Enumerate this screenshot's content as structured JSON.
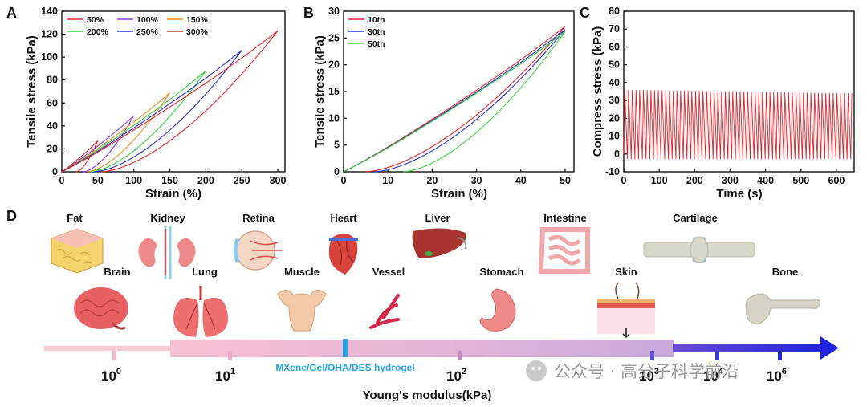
{
  "colors": {
    "red": "#e8242b",
    "purple": "#8a3ad6",
    "orange": "#f08c1e",
    "green": "#37d23c",
    "blue": "#2732c8",
    "hydrogel": "#1ea7e6"
  },
  "chart_data": [
    {
      "panel": "A",
      "type": "line",
      "xlabel": "Strain (%)",
      "ylabel": "Tensile stress (kPa)",
      "xlim": [
        0,
        310
      ],
      "ylim": [
        0,
        140
      ],
      "xticks": [
        0,
        50,
        100,
        150,
        200,
        250,
        300
      ],
      "yticks": [
        0,
        20,
        40,
        60,
        80,
        100,
        120,
        140
      ],
      "legend": "top-left",
      "series": [
        {
          "name": "50%",
          "color": "#e8242b",
          "peak": [
            50,
            27
          ],
          "residual": 20
        },
        {
          "name": "100%",
          "color": "#8a3ad6",
          "peak": [
            100,
            49
          ],
          "residual": 30
        },
        {
          "name": "150%",
          "color": "#f08c1e",
          "peak": [
            150,
            69
          ],
          "residual": 35
        },
        {
          "name": "200%",
          "color": "#37d23c",
          "peak": [
            200,
            88
          ],
          "residual": 40
        },
        {
          "name": "250%",
          "color": "#2732c8",
          "peak": [
            250,
            106
          ],
          "residual": 45
        },
        {
          "name": "300%",
          "color": "#e8242b",
          "peak": [
            300,
            123
          ],
          "residual": 55
        }
      ]
    },
    {
      "panel": "B",
      "type": "line",
      "xlabel": "Strain (%)",
      "ylabel": "Tensile stress (kPa)",
      "xlim": [
        0,
        52
      ],
      "ylim": [
        0,
        30
      ],
      "xticks": [
        0,
        10,
        20,
        30,
        40,
        50
      ],
      "yticks": [
        0,
        5,
        10,
        15,
        20,
        25,
        30
      ],
      "legend": "top-left",
      "series": [
        {
          "name": "10th",
          "color": "#e8242b",
          "peak": [
            50,
            27.2
          ],
          "residual": 5
        },
        {
          "name": "30th",
          "color": "#2732c8",
          "peak": [
            50,
            26.6
          ],
          "residual": 7
        },
        {
          "name": "50th",
          "color": "#37d23c",
          "peak": [
            50,
            26.2
          ],
          "residual": 13.5
        }
      ]
    },
    {
      "panel": "C",
      "type": "line",
      "xlabel": "Time (s)",
      "ylabel": "Compress stress (kPa)",
      "xlim": [
        0,
        650
      ],
      "ylim": [
        -10,
        80
      ],
      "xticks": [
        0,
        100,
        200,
        300,
        400,
        500,
        600
      ],
      "yticks": [
        -10,
        0,
        10,
        20,
        30,
        40,
        50,
        60,
        70,
        80
      ],
      "series": [
        {
          "color": "#e8242b",
          "period_s": 10.5,
          "min": -3,
          "max_start": 36,
          "max_end": 34
        }
      ]
    }
  ],
  "panel_d": {
    "label": "D",
    "axis_label": "Young's modulus(kPa)",
    "ticks": [
      {
        "base": "10",
        "exp": "0"
      },
      {
        "base": "10",
        "exp": "1"
      },
      {
        "base": "10",
        "exp": "2"
      },
      {
        "base": "10",
        "exp": "3"
      },
      {
        "base": "10",
        "exp": "4"
      },
      {
        "base": "10",
        "exp": "6"
      }
    ],
    "hydrogel_label": "MXene/Gel/OHA/DES hydrogel",
    "organs_top": [
      "Fat",
      "Kidney",
      "Retina",
      "Heart",
      "Liver",
      "Intestine",
      "Cartilage"
    ],
    "organs_bottom": [
      "Brain",
      "Lung",
      "Muscle",
      "Vessel",
      "Stomach",
      "Skin",
      "Bone"
    ]
  },
  "watermark": "公众号 · 高分子科学前沿"
}
